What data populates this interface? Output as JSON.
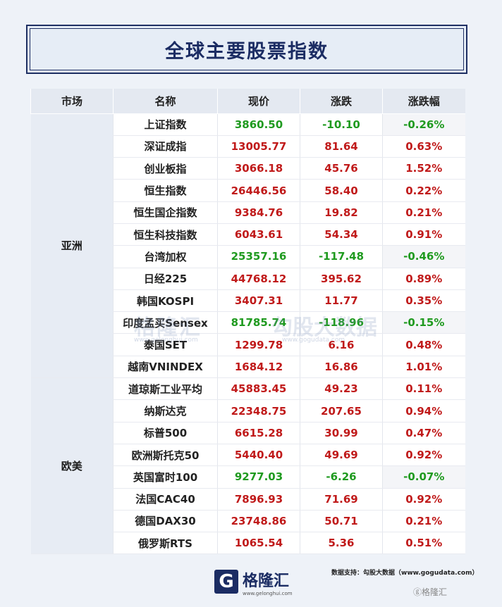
{
  "title": "全球主要股票指数",
  "headers": [
    "市场",
    "名称",
    "现价",
    "涨跌",
    "涨跌幅"
  ],
  "colors": {
    "up": "#c01a1a",
    "down": "#1f9a1f",
    "brand": "#1b2c63"
  },
  "groups": [
    {
      "market": "亚洲",
      "rows": [
        {
          "name": "上证指数",
          "price": "3860.50",
          "change": "-10.10",
          "pct": "-0.26%",
          "dir": "down"
        },
        {
          "name": "深证成指",
          "price": "13005.77",
          "change": "81.64",
          "pct": "0.63%",
          "dir": "up"
        },
        {
          "name": "创业板指",
          "price": "3066.18",
          "change": "45.76",
          "pct": "1.52%",
          "dir": "up"
        },
        {
          "name": "恒生指数",
          "price": "26446.56",
          "change": "58.40",
          "pct": "0.22%",
          "dir": "up"
        },
        {
          "name": "恒生国企指数",
          "price": "9384.76",
          "change": "19.82",
          "pct": "0.21%",
          "dir": "up"
        },
        {
          "name": "恒生科技指数",
          "price": "6043.61",
          "change": "54.34",
          "pct": "0.91%",
          "dir": "up"
        },
        {
          "name": "台湾加权",
          "price": "25357.16",
          "change": "-117.48",
          "pct": "-0.46%",
          "dir": "down"
        },
        {
          "name": "日经225",
          "price": "44768.12",
          "change": "395.62",
          "pct": "0.89%",
          "dir": "up"
        },
        {
          "name": "韩国KOSPI",
          "price": "3407.31",
          "change": "11.77",
          "pct": "0.35%",
          "dir": "up"
        },
        {
          "name": "印度孟买Sensex",
          "price": "81785.74",
          "change": "-118.96",
          "pct": "-0.15%",
          "dir": "down"
        },
        {
          "name": "泰国SET",
          "price": "1299.78",
          "change": "6.16",
          "pct": "0.48%",
          "dir": "up"
        },
        {
          "name": "越南VNINDEX",
          "price": "1684.12",
          "change": "16.86",
          "pct": "1.01%",
          "dir": "up"
        }
      ]
    },
    {
      "market": "欧美",
      "rows": [
        {
          "name": "道琼斯工业平均",
          "price": "45883.45",
          "change": "49.23",
          "pct": "0.11%",
          "dir": "up"
        },
        {
          "name": "纳斯达克",
          "price": "22348.75",
          "change": "207.65",
          "pct": "0.94%",
          "dir": "up"
        },
        {
          "name": "标普500",
          "price": "6615.28",
          "change": "30.99",
          "pct": "0.47%",
          "dir": "up"
        },
        {
          "name": "欧洲斯托克50",
          "price": "5440.40",
          "change": "49.69",
          "pct": "0.92%",
          "dir": "up"
        },
        {
          "name": "英国富时100",
          "price": "9277.03",
          "change": "-6.26",
          "pct": "-0.07%",
          "dir": "down"
        },
        {
          "name": "法国CAC40",
          "price": "7896.93",
          "change": "71.69",
          "pct": "0.92%",
          "dir": "up"
        },
        {
          "name": "德国DAX30",
          "price": "23748.86",
          "change": "50.71",
          "pct": "0.21%",
          "dir": "up"
        },
        {
          "name": "俄罗斯RTS",
          "price": "1065.54",
          "change": "5.36",
          "pct": "0.51%",
          "dir": "up"
        }
      ]
    }
  ],
  "footer": {
    "source": "数据支持：勾股大数据（www.gogudata.com）",
    "logo_mark": "G",
    "logo_word": "格隆汇",
    "logo_url": "www.gelonghui.com",
    "corner_mark": "ⓖ格隆汇"
  },
  "watermark": {
    "left": "格隆汇",
    "left_url": "www.gelonghui.com",
    "right": "勾股大数据",
    "right_url": "www.gogudata.com"
  }
}
